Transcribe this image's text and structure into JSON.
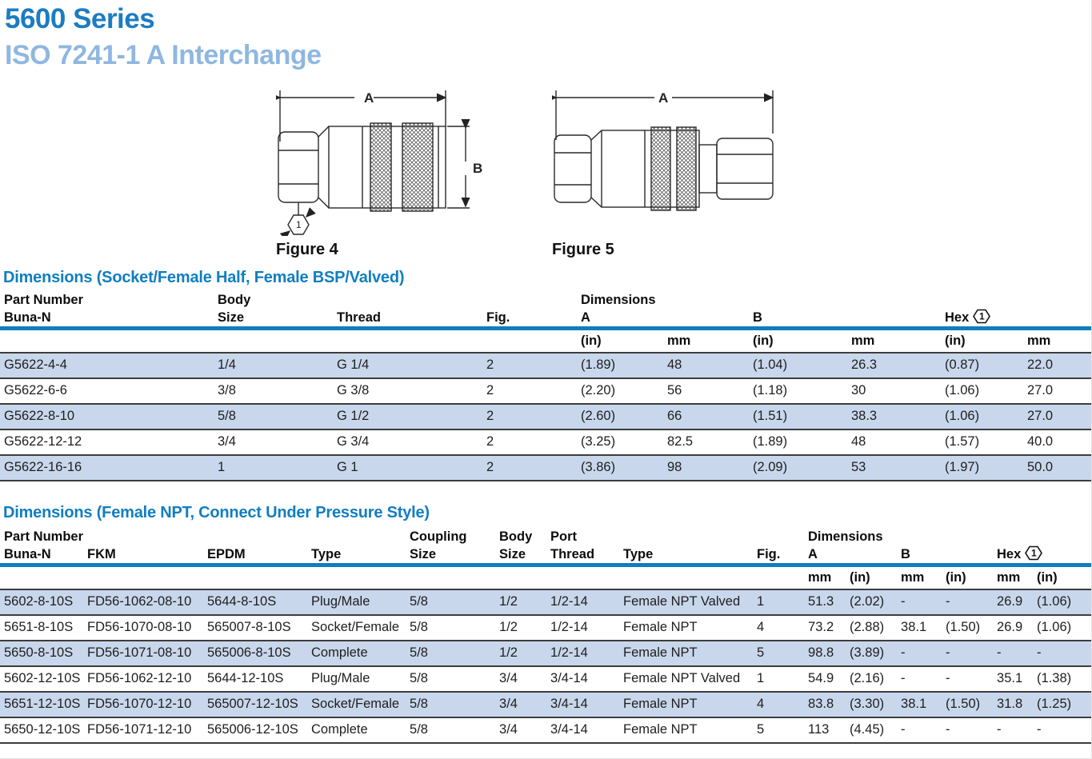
{
  "page": {
    "title": "5600 Series",
    "subtitle": "ISO 7241-1 A Interchange"
  },
  "figures": [
    {
      "label": "Figure 4",
      "dim_a": "A",
      "dim_b": "B",
      "callout": "1"
    },
    {
      "label": "Figure 5",
      "dim_a": "A"
    }
  ],
  "table1": {
    "title": "Dimensions (Socket/Female Half, Female BSP/Valved)",
    "header": {
      "part_number_line1": "Part Number",
      "part_number_line2": "Buna-N",
      "body_line1": "Body",
      "body_line2": "Size",
      "thread": "Thread",
      "fig": "Fig.",
      "dimensions": "Dimensions",
      "a": "A",
      "b": "B",
      "hex": "Hex",
      "hex_note": "1"
    },
    "units": [
      "(in)",
      "mm",
      "(in)",
      "mm",
      "(in)",
      "mm"
    ],
    "rows": [
      [
        "G5622-4-4",
        "1/4",
        "G 1/4",
        "2",
        "(1.89)",
        "48",
        "(1.04)",
        "26.3",
        "(0.87)",
        "22.0"
      ],
      [
        "G5622-6-6",
        "3/8",
        "G 3/8",
        "2",
        "(2.20)",
        "56",
        "(1.18)",
        "30",
        "(1.06)",
        "27.0"
      ],
      [
        "G5622-8-10",
        "5/8",
        "G 1/2",
        "2",
        "(2.60)",
        "66",
        "(1.51)",
        "38.3",
        "(1.06)",
        "27.0"
      ],
      [
        "G5622-12-12",
        "3/4",
        "G 3/4",
        "2",
        "(3.25)",
        "82.5",
        "(1.89)",
        "48",
        "(1.57)",
        "40.0"
      ],
      [
        "G5622-16-16",
        "1",
        "G 1",
        "2",
        "(3.86)",
        "98",
        "(2.09)",
        "53",
        "(1.97)",
        "50.0"
      ]
    ]
  },
  "table2": {
    "title": "Dimensions (Female NPT, Connect Under Pressure Style)",
    "header": {
      "part_number": "Part Number",
      "buna": "Buna-N",
      "fkm": "FKM",
      "epdm": "EPDM",
      "type1": "Type",
      "coupling_line1": "Coupling",
      "coupling_line2": "Size",
      "body_line1": "Body",
      "body_line2": "Size",
      "port_line1": "Port",
      "port_line2": "Thread",
      "type2": "Type",
      "fig": "Fig.",
      "dimensions": "Dimensions",
      "a": "A",
      "b": "B",
      "hex": "Hex",
      "hex_note": "1"
    },
    "units": [
      "mm",
      "(in)",
      "mm",
      "(in)",
      "mm",
      "(in)"
    ],
    "rows": [
      [
        "5602-8-10S",
        "FD56-1062-08-10",
        "5644-8-10S",
        "Plug/Male",
        "5/8",
        "1/2",
        "1/2-14",
        "Female NPT Valved",
        "1",
        "51.3",
        "(2.02)",
        "-",
        "-",
        "26.9",
        "(1.06)"
      ],
      [
        "5651-8-10S",
        "FD56-1070-08-10",
        "565007-8-10S",
        "Socket/Female",
        "5/8",
        "1/2",
        "1/2-14",
        "Female NPT",
        "4",
        "73.2",
        "(2.88)",
        "38.1",
        "(1.50)",
        "26.9",
        "(1.06)"
      ],
      [
        "5650-8-10S",
        "FD56-1071-08-10",
        "565006-8-10S",
        "Complete",
        "5/8",
        "1/2",
        "1/2-14",
        "Female NPT",
        "5",
        "98.8",
        "(3.89)",
        "-",
        "-",
        "-",
        "-"
      ],
      [
        "5602-12-10S",
        "FD56-1062-12-10",
        "5644-12-10S",
        "Plug/Male",
        "5/8",
        "3/4",
        "3/4-14",
        "Female NPT Valved",
        "1",
        "54.9",
        "(2.16)",
        "-",
        "-",
        "35.1",
        "(1.38)"
      ],
      [
        "5651-12-10S",
        "FD56-1070-12-10",
        "565007-12-10S",
        "Socket/Female",
        "5/8",
        "3/4",
        "3/4-14",
        "Female NPT",
        "4",
        "83.8",
        "(3.30)",
        "38.1",
        "(1.50)",
        "31.8",
        "(1.25)"
      ],
      [
        "5650-12-10S",
        "FD56-1071-12-10",
        "565006-12-10S",
        "Complete",
        "5/8",
        "3/4",
        "3/4-14",
        "Female NPT",
        "5",
        "113",
        "(4.45)",
        "-",
        "-",
        "-",
        "-"
      ]
    ]
  },
  "colors": {
    "accent_blue": "#107ec1",
    "title_blue": "#1c7cc2",
    "subtitle_blue": "#8fb7e0",
    "row_shade": "#c9d7ec",
    "line_dark": "#3d3d3d"
  }
}
